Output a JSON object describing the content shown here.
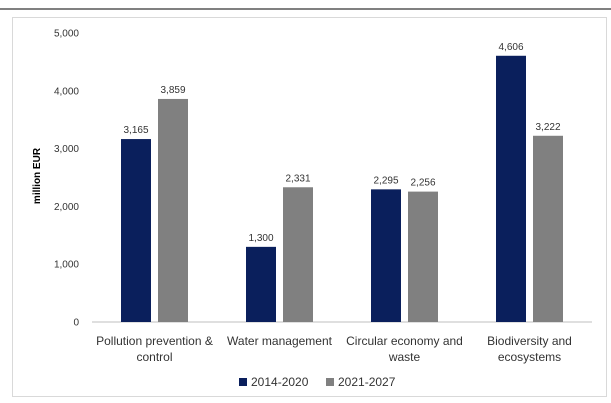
{
  "chart_data": {
    "type": "bar",
    "categories": [
      [
        "Pollution prevention &",
        "control"
      ],
      [
        "Water management"
      ],
      [
        "Circular economy and",
        "waste"
      ],
      [
        "Biodiversity and",
        "ecosystems"
      ]
    ],
    "series": [
      {
        "name": "2014-2020",
        "color": "#0a1f5c",
        "values": [
          3165,
          1300,
          2295,
          4606
        ]
      },
      {
        "name": "2021-2027",
        "color": "#808080",
        "values": [
          3859,
          2331,
          2256,
          3222
        ]
      }
    ],
    "data_labels": [
      [
        "3,165",
        "1,300",
        "2,295",
        "4,606"
      ],
      [
        "3,859",
        "2,331",
        "2,256",
        "3,222"
      ]
    ],
    "yticks": [
      0,
      1000,
      2000,
      3000,
      4000,
      5000
    ],
    "ytick_labels": [
      "0",
      "1,000",
      "2,000",
      "3,000",
      "4,000",
      "5,000"
    ],
    "ylim": [
      0,
      5000
    ],
    "ylabel": "million EUR",
    "xlabel": "",
    "title": "",
    "grid": false,
    "legend_position": "bottom"
  }
}
